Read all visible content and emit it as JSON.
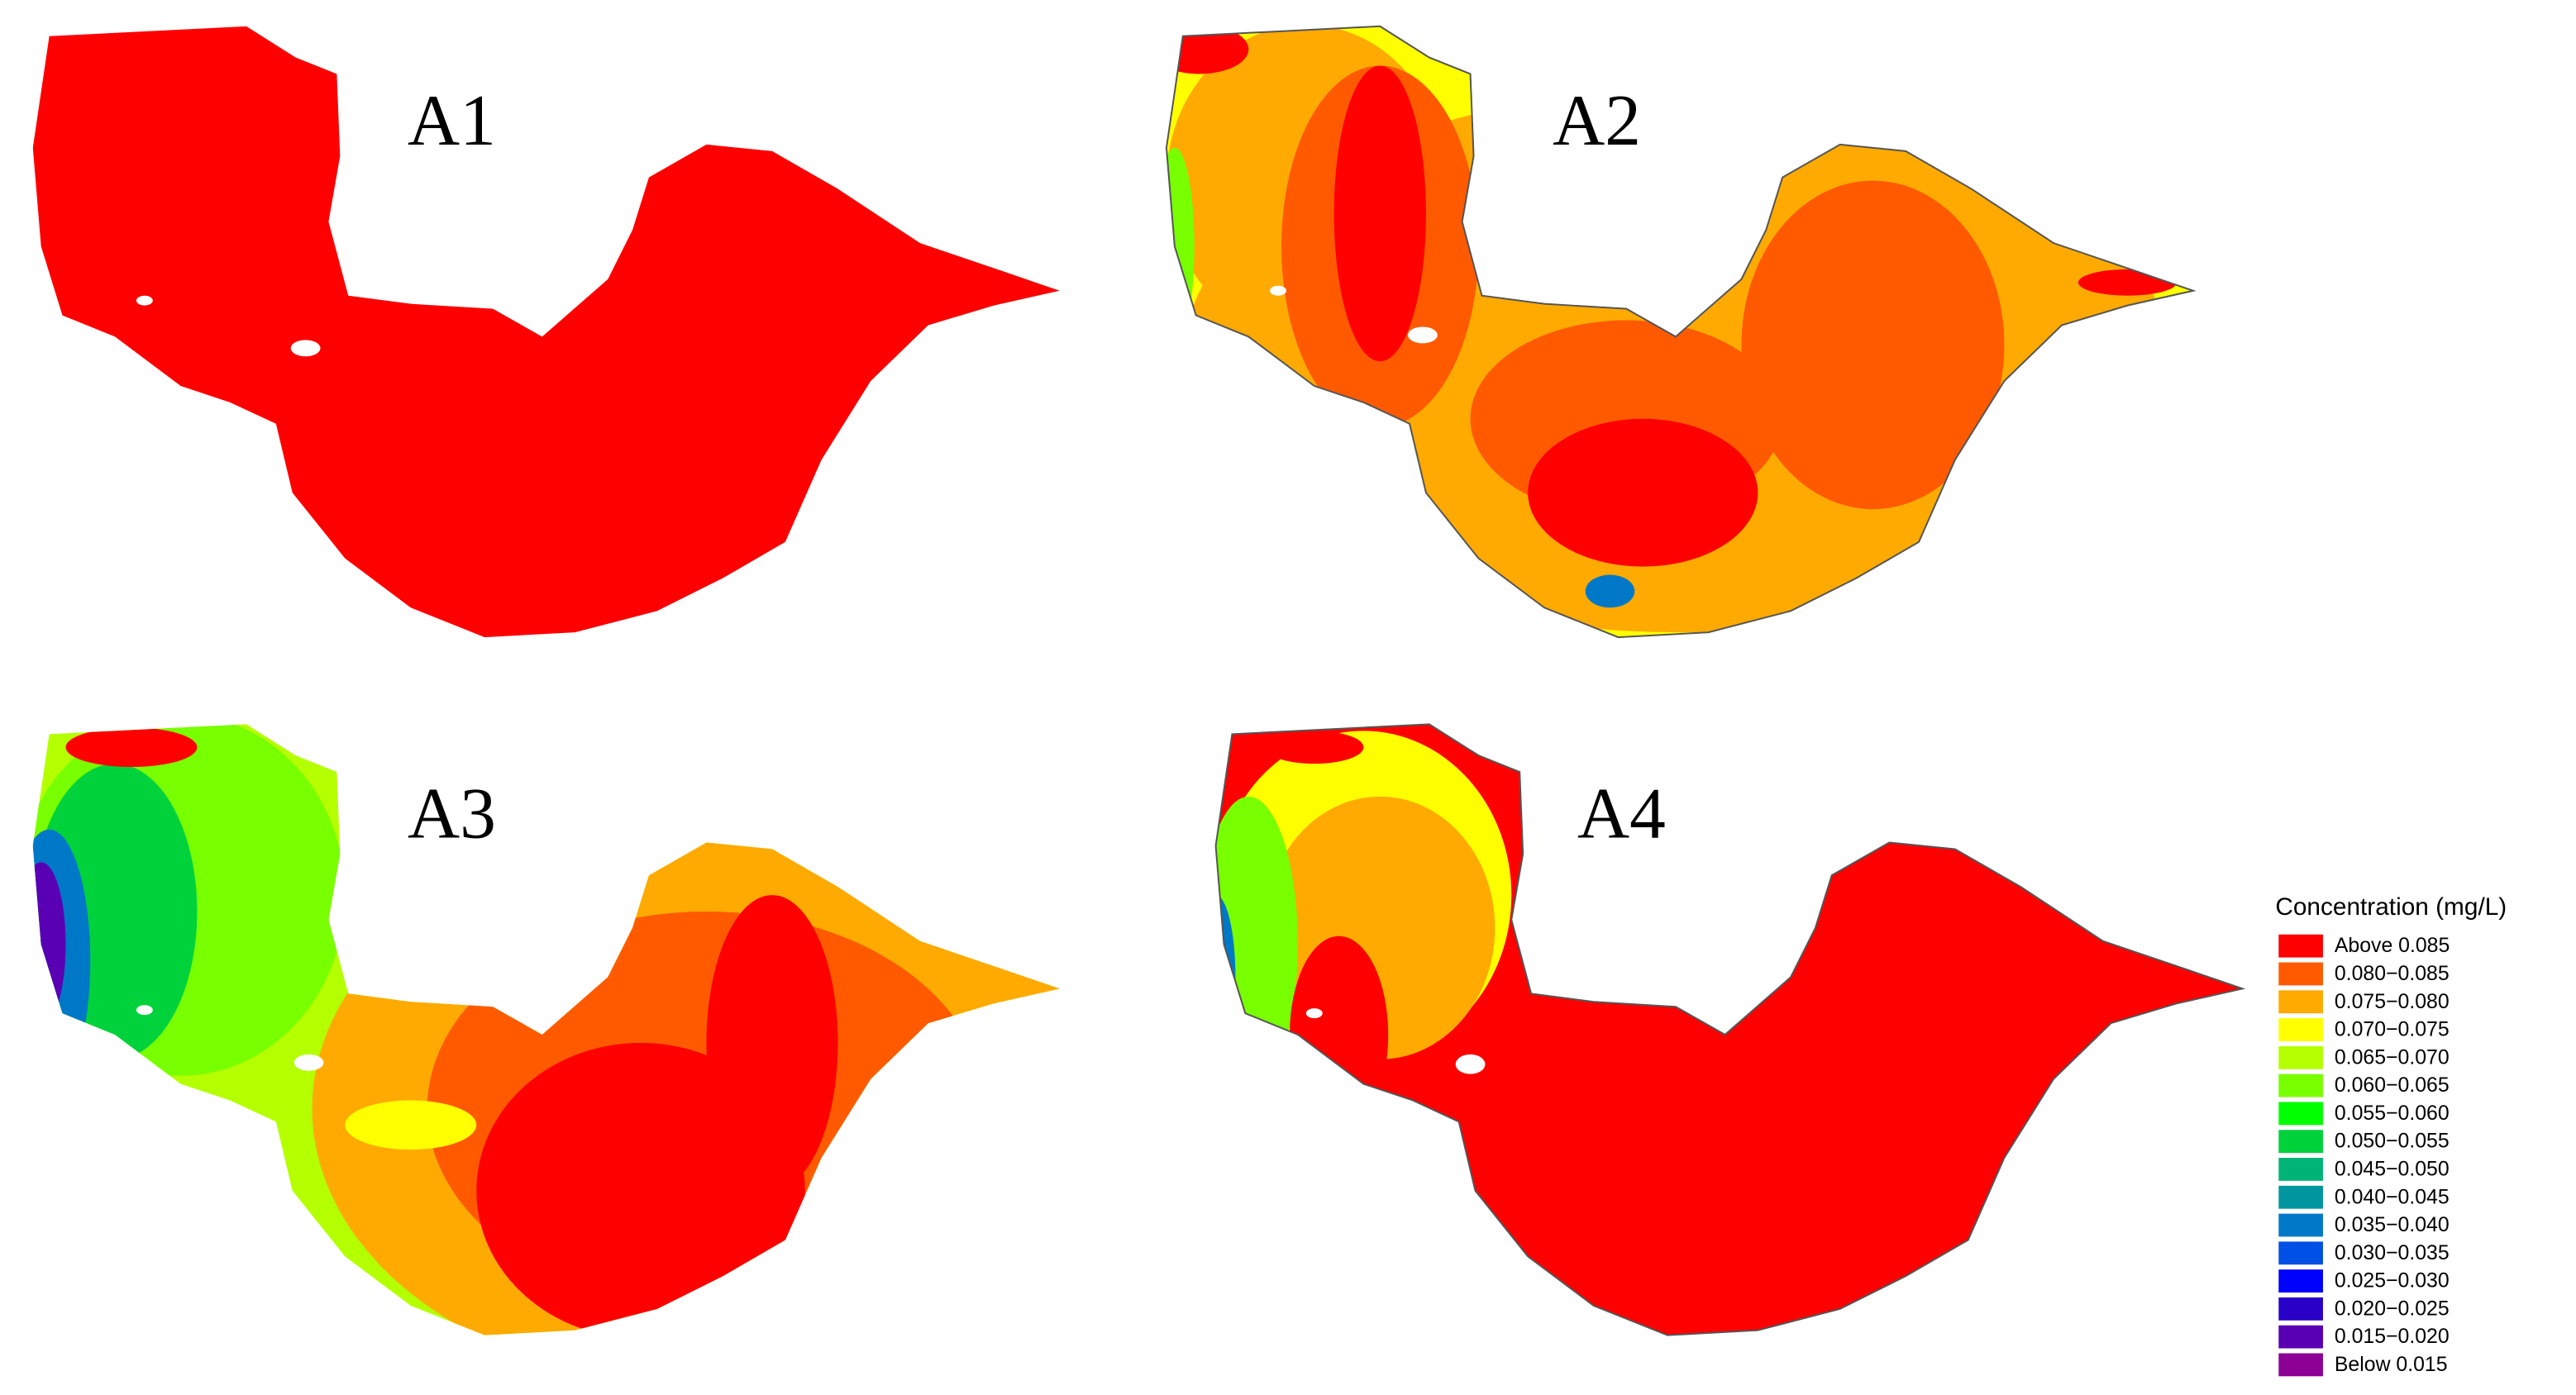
{
  "panels": [
    {
      "label": "A1"
    },
    {
      "label": "A2"
    },
    {
      "label": "A3"
    },
    {
      "label": "A4"
    }
  ],
  "legend": {
    "title": "Concentration (mg/L)",
    "items": [
      {
        "label": "Above  0.085",
        "color": "#ff0000"
      },
      {
        "label": "0.080−0.085",
        "color": "#ff5a00"
      },
      {
        "label": "0.075−0.080",
        "color": "#ffaa00"
      },
      {
        "label": "0.070−0.075",
        "color": "#ffff00"
      },
      {
        "label": "0.065−0.070",
        "color": "#b4ff00"
      },
      {
        "label": "0.060−0.065",
        "color": "#78ff00"
      },
      {
        "label": "0.055−0.060",
        "color": "#00ff00"
      },
      {
        "label": "0.050−0.055",
        "color": "#00d23c"
      },
      {
        "label": "0.045−0.050",
        "color": "#00b478"
      },
      {
        "label": "0.040−0.045",
        "color": "#0096a0"
      },
      {
        "label": "0.035−0.040",
        "color": "#0078c8"
      },
      {
        "label": "0.030−0.035",
        "color": "#0050e6"
      },
      {
        "label": "0.025−0.030",
        "color": "#0000ff"
      },
      {
        "label": "0.020−0.025",
        "color": "#2800c8"
      },
      {
        "label": "0.015−0.020",
        "color": "#5a00b4"
      },
      {
        "label": "Below  0.015",
        "color": "#8c0096"
      }
    ]
  }
}
